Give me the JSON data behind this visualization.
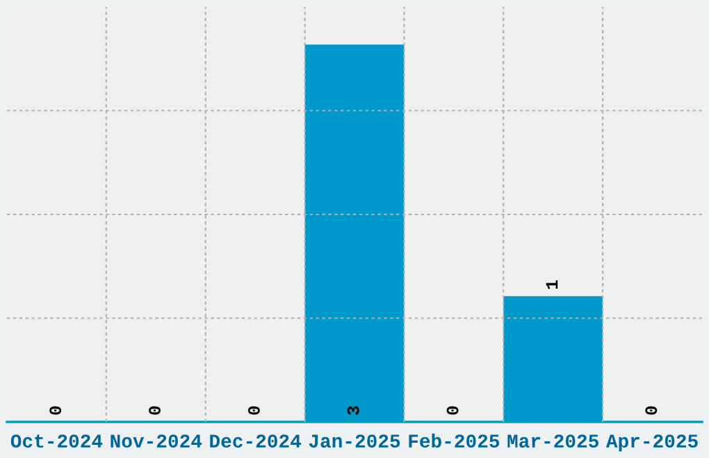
{
  "chart_data": {
    "type": "bar",
    "categories": [
      "Oct-2024",
      "Nov-2024",
      "Dec-2024",
      "Jan-2025",
      "Feb-2025",
      "Mar-2025",
      "Apr-2025"
    ],
    "values": [
      0,
      0,
      0,
      3,
      0,
      1,
      0
    ],
    "color": "#0099cc",
    "data_labels": true,
    "ylim": [
      0,
      3.3
    ],
    "yticks": [
      {
        "value": 0.825,
        "label": null
      },
      {
        "value": 1.65,
        "label": null
      },
      {
        "value": 2.475,
        "label": null
      }
    ],
    "tick_labels": "x",
    "grid": true
  }
}
